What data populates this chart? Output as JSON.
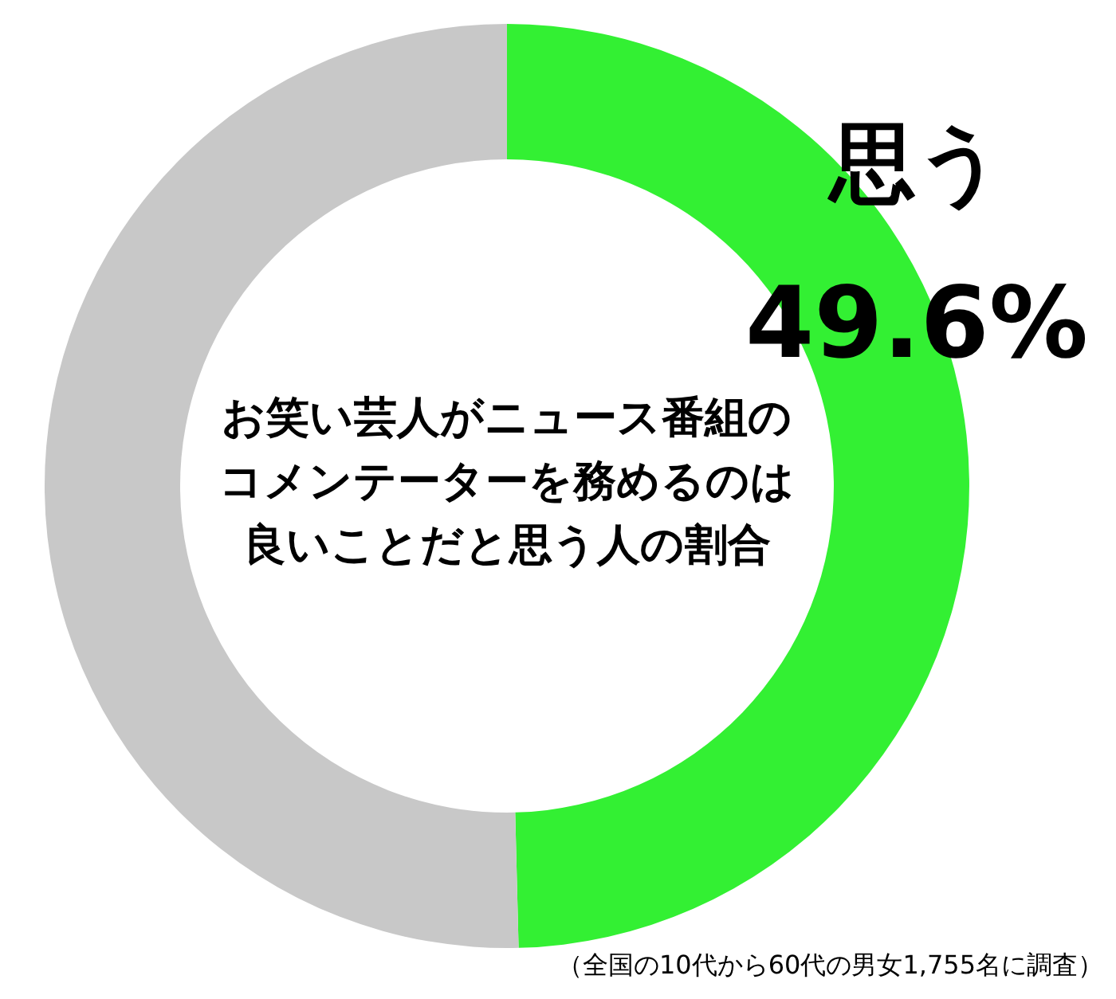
{
  "chart_data": {
    "type": "donut",
    "title": "お笑い芸人がニュース番組のコメンテーターを務めるのは良いことだと思う人の割合",
    "categories": [
      "思う",
      null
    ],
    "values": [
      49.6,
      50.4
    ],
    "colors": [
      "#33f033",
      "#c8c8c8"
    ],
    "value_labels": [
      "49.6%",
      null
    ],
    "annotations": [
      "（全国の10代から60代の男女1,755名に調査）"
    ]
  }
}
